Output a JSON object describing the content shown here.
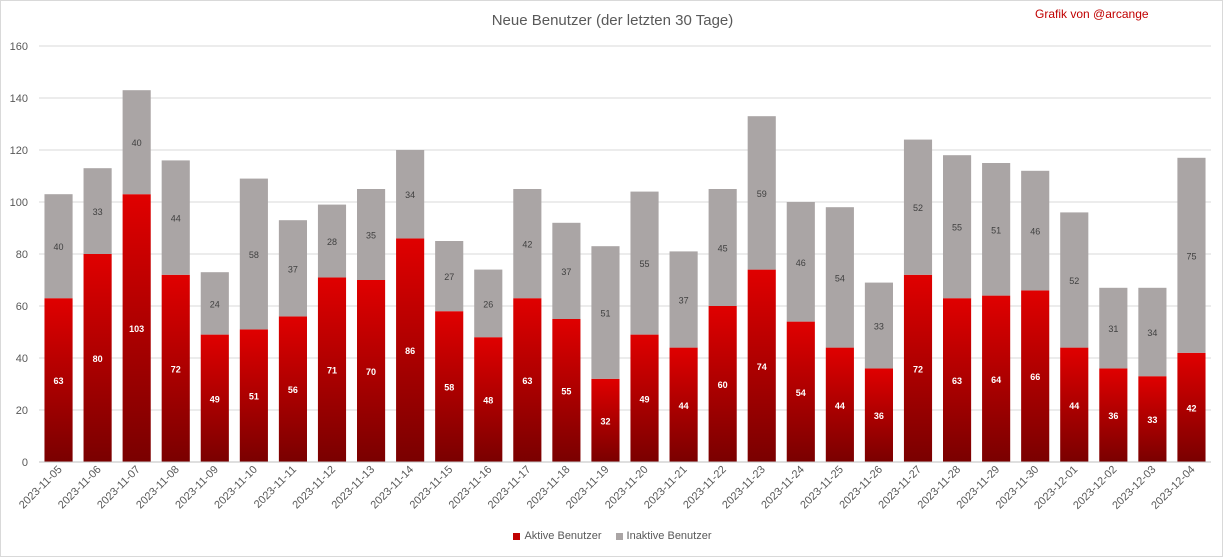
{
  "chart_data": {
    "type": "bar",
    "stacked": true,
    "title": "Neue Benutzer (der letzten 30 Tage)",
    "credit": "Grafik von @arcange",
    "ylim": [
      0,
      160
    ],
    "yticks": [
      0,
      20,
      40,
      60,
      80,
      100,
      120,
      140,
      160
    ],
    "grid": true,
    "legend_position": "bottom",
    "categories": [
      "2023-11-05",
      "2023-11-06",
      "2023-11-07",
      "2023-11-08",
      "2023-11-09",
      "2023-11-10",
      "2023-11-11",
      "2023-11-12",
      "2023-11-13",
      "2023-11-14",
      "2023-11-15",
      "2023-11-16",
      "2023-11-17",
      "2023-11-18",
      "2023-11-19",
      "2023-11-20",
      "2023-11-21",
      "2023-11-22",
      "2023-11-23",
      "2023-11-24",
      "2023-11-25",
      "2023-11-26",
      "2023-11-27",
      "2023-11-28",
      "2023-11-29",
      "2023-11-30",
      "2023-12-01",
      "2023-12-02",
      "2023-12-03",
      "2023-12-04"
    ],
    "series": [
      {
        "name": "Aktive Benutzer",
        "color": "#c00000",
        "values": [
          63,
          80,
          103,
          72,
          49,
          51,
          56,
          71,
          70,
          86,
          58,
          48,
          63,
          55,
          32,
          49,
          44,
          60,
          74,
          54,
          44,
          36,
          72,
          63,
          64,
          66,
          44,
          36,
          33,
          42
        ]
      },
      {
        "name": "Inaktive Benutzer",
        "color": "#aaa5a5",
        "values": [
          40,
          33,
          40,
          44,
          24,
          58,
          37,
          28,
          35,
          34,
          27,
          26,
          42,
          37,
          51,
          55,
          37,
          45,
          59,
          46,
          54,
          33,
          52,
          55,
          51,
          46,
          52,
          31,
          34,
          75
        ]
      }
    ]
  }
}
